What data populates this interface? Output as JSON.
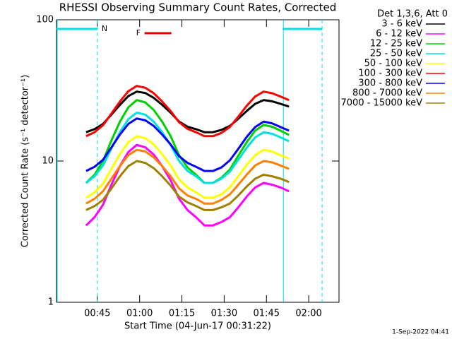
{
  "chart_data": {
    "type": "line",
    "title": "RHESSI Observing Summary Count Rates, Corrected",
    "xlabel": "Start Time (04-Jun-17 00:31:22)",
    "ylabel": "Corrected Count Rate (s⁻¹ detector⁻¹)",
    "legend_title": "Det 1,3,6, Att 0",
    "footer": "1-Sep-2022 04:41",
    "log_y": true,
    "xlim": [
      30.5,
      130.75
    ],
    "ylim": [
      1,
      100
    ],
    "xticks": [
      {
        "value": 45,
        "label": "00:45"
      },
      {
        "value": 60,
        "label": "01:00"
      },
      {
        "value": 75,
        "label": "01:15"
      },
      {
        "value": 90,
        "label": "01:30"
      },
      {
        "value": 105,
        "label": "01:45"
      },
      {
        "value": 120,
        "label": "02:00"
      }
    ],
    "yticks": [
      1,
      10,
      100
    ],
    "night": [
      {
        "label": "N",
        "start": 30.5,
        "end": 45,
        "color": "#00e0e0"
      },
      {
        "start": 110.75,
        "end": 124.75,
        "color": "#00e0e0"
      }
    ],
    "flare": [
      {
        "label": "F",
        "start": 61.75,
        "end": 71.25,
        "color": "#e00000"
      }
    ],
    "x": [
      41,
      44,
      47,
      50,
      53,
      56,
      59,
      62,
      65,
      68,
      71,
      74,
      77,
      80,
      83,
      86,
      89,
      92,
      95,
      98,
      101,
      104,
      107,
      110,
      113
    ],
    "series": [
      {
        "name": "3 - 6 keV",
        "color": "#000000",
        "values": [
          16,
          16.8,
          18.3,
          21.3,
          25,
          28.8,
          31,
          30.3,
          28,
          25,
          22,
          19,
          17.5,
          16.8,
          16,
          16,
          16.6,
          17.7,
          19.9,
          22.6,
          25.4,
          27,
          26.5,
          25.4,
          24.3
        ]
      },
      {
        "name": "6 - 12 keV",
        "color": "#ff00ff",
        "values": [
          3.5,
          4,
          4.9,
          6.8,
          9.2,
          11.6,
          13,
          12.5,
          11.1,
          9.2,
          7.3,
          5.4,
          4.5,
          4,
          3.5,
          3.5,
          3.7,
          4,
          4.7,
          5.6,
          6.5,
          7,
          6.8,
          6.5,
          6.1
        ]
      },
      {
        "name": "12 - 25 keV",
        "color": "#00d000",
        "values": [
          7,
          8,
          10,
          14,
          19,
          24,
          27,
          26,
          23,
          19,
          15,
          11,
          9,
          8,
          7,
          7,
          7.6,
          8.7,
          10.9,
          13.6,
          16.4,
          18,
          17.5,
          16.4,
          15.3
        ]
      },
      {
        "name": "25 - 50 keV",
        "color": "#00e0e0",
        "values": [
          7,
          7.8,
          9.3,
          12.3,
          16,
          19.8,
          22,
          21.3,
          19,
          16,
          13,
          10,
          8.5,
          7.8,
          7,
          7,
          7.5,
          8.4,
          10.2,
          12.4,
          14.7,
          16,
          15.6,
          14.7,
          13.8
        ]
      },
      {
        "name": "50 - 100 keV",
        "color": "#ffff00",
        "values": [
          5.5,
          6,
          6.9,
          8.8,
          11.2,
          13.6,
          15,
          14.5,
          13.1,
          11.2,
          9.3,
          7.4,
          6.5,
          6,
          5.5,
          5.5,
          5.8,
          6.5,
          7.8,
          9.4,
          11,
          12,
          11.7,
          11,
          10.4
        ]
      },
      {
        "name": "100 - 300 keV",
        "color": "#ff0000",
        "values": [
          15,
          16,
          17.9,
          21.7,
          26.4,
          31.2,
          34,
          33,
          30.2,
          26.4,
          22.6,
          18.8,
          16.9,
          16,
          15,
          15,
          15.8,
          17.4,
          20.6,
          24.6,
          28.6,
          31,
          30.2,
          28.6,
          27
        ]
      },
      {
        "name": "300 - 800 keV",
        "color": "#0000ff",
        "values": [
          8.5,
          9.1,
          10.2,
          12.5,
          15.4,
          18.3,
          20,
          19.4,
          17.7,
          15.4,
          13.1,
          10.8,
          9.7,
          9.1,
          8.5,
          8.5,
          9,
          10.1,
          12.2,
          14.8,
          17.4,
          19,
          18.5,
          17.4,
          16.4
        ]
      },
      {
        "name": "800 - 7000 keV",
        "color": "#ff8000",
        "values": [
          5,
          5.4,
          6.1,
          7.5,
          9.2,
          11,
          12,
          11.7,
          10.6,
          9.2,
          7.8,
          6.4,
          5.7,
          5.4,
          5,
          5,
          5.3,
          5.8,
          6.8,
          8,
          9.3,
          10,
          9.8,
          9.3,
          8.8
        ]
      },
      {
        "name": "7000 - 15000 keV",
        "color": "#a08000",
        "values": [
          4.5,
          4.8,
          5.3,
          6.4,
          7.8,
          9.2,
          10,
          9.7,
          8.9,
          7.8,
          6.7,
          5.6,
          5.1,
          4.8,
          4.5,
          4.5,
          4.7,
          5,
          5.7,
          6.6,
          7.5,
          8,
          7.8,
          7.5,
          7.1
        ]
      }
    ]
  }
}
